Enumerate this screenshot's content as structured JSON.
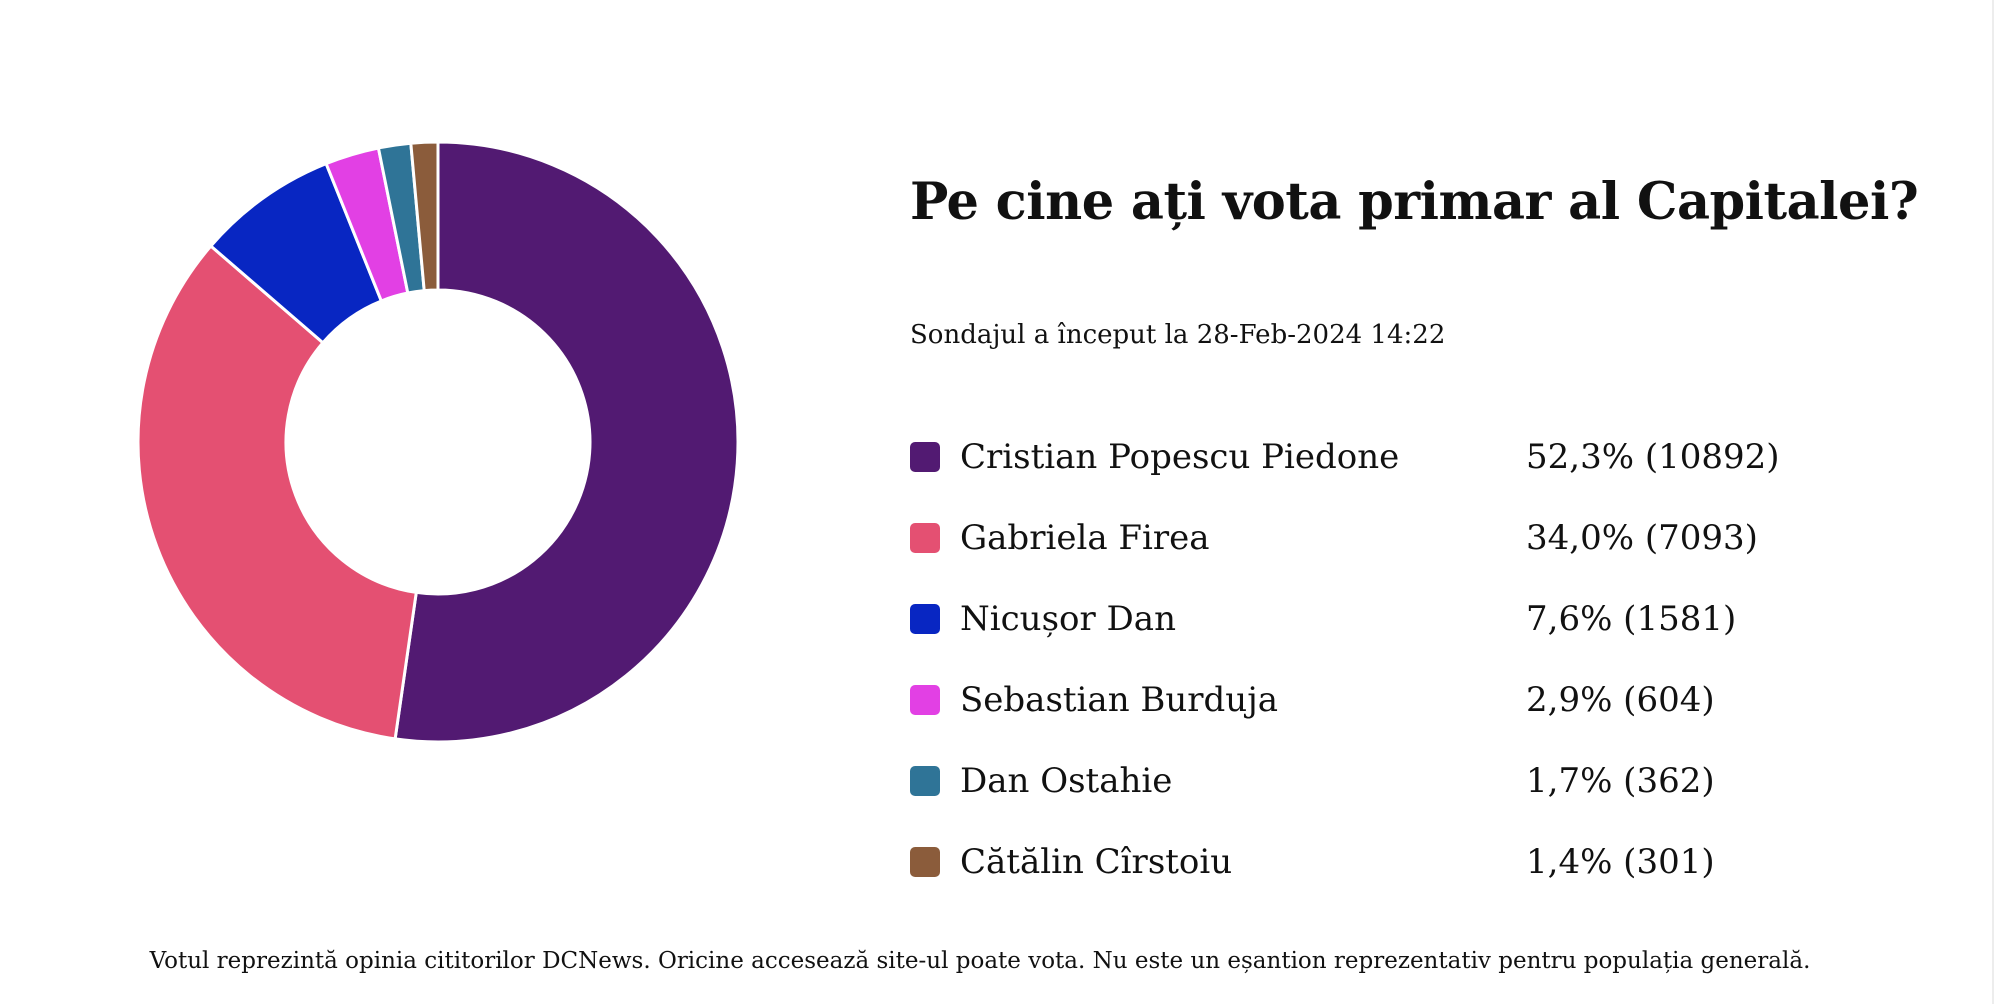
{
  "chart_data": {
    "type": "pie",
    "title": "Pe cine ați vota primar al Capitalei?",
    "subtitle": "Sondajul a început la 28-Feb-2024 14:22",
    "legend_position": "right",
    "series": [
      {
        "name": "Cristian Popescu Piedone",
        "percent": 52.3,
        "votes": 10892,
        "label": "52,3% (10892)",
        "color": "#521a72"
      },
      {
        "name": "Gabriela Firea",
        "percent": 34.0,
        "votes": 7093,
        "label": "34,0% (7093)",
        "color": "#e45072"
      },
      {
        "name": "Nicușor Dan",
        "percent": 7.6,
        "votes": 1581,
        "label": "7,6% (1581)",
        "color": "#0826c2"
      },
      {
        "name": "Sebastian Burduja",
        "percent": 2.9,
        "votes": 604,
        "label": "2,9% (604)",
        "color": "#e240e4"
      },
      {
        "name": "Dan Ostahie",
        "percent": 1.7,
        "votes": 362,
        "label": "1,7% (362)",
        "color": "#2f7497"
      },
      {
        "name": "Cătălin Cîrstoiu",
        "percent": 1.4,
        "votes": 301,
        "label": "1,4% (301)",
        "color": "#8b5c3b"
      }
    ]
  },
  "footnote": "Votul reprezintă opinia cititorilor DCNews. Oricine accesează site-ul poate vota. Nu este un eșantion reprezentativ pentru populația generală."
}
